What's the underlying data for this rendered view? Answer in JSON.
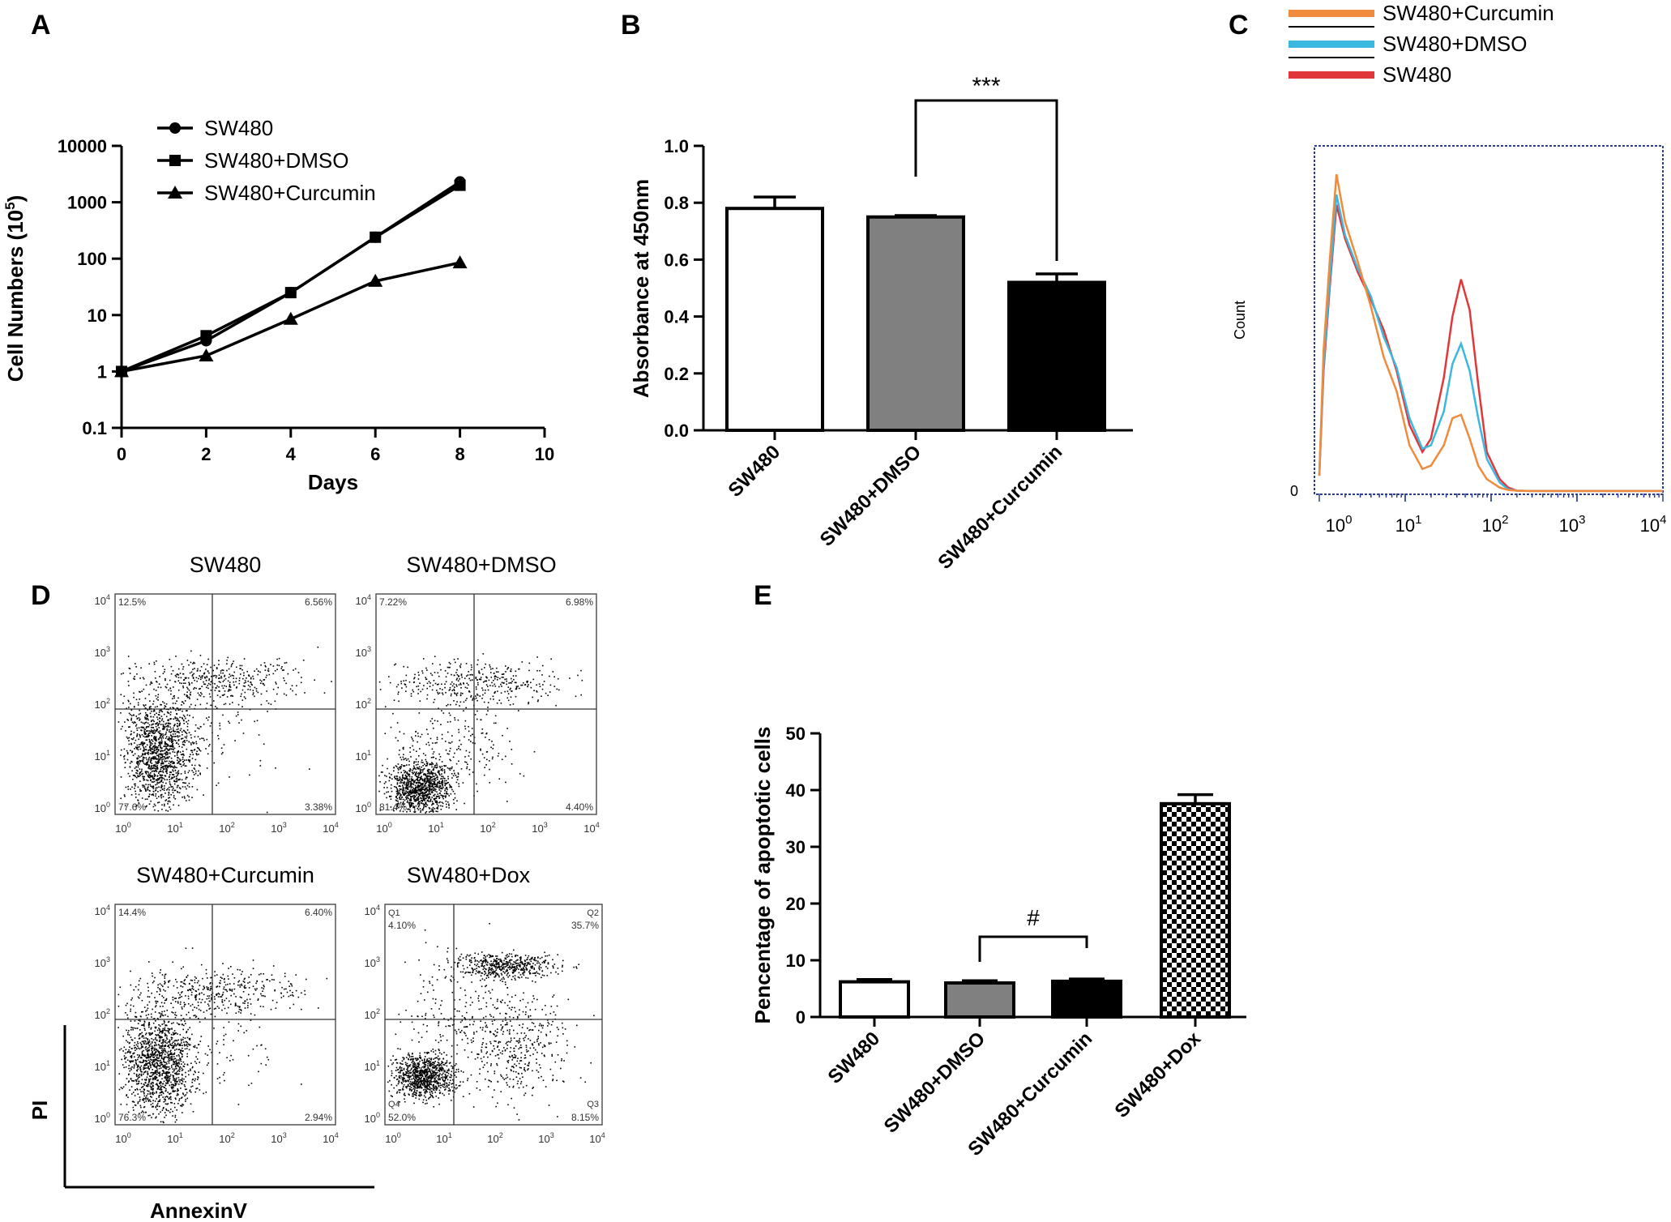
{
  "panels": {
    "A": "A",
    "B": "B",
    "C": "C",
    "D": "D",
    "E": "E"
  },
  "colors": {
    "orange": "#f08a3c",
    "blue": "#3bb8e0",
    "red": "#e0383a",
    "black": "#000000",
    "gray": "#808080",
    "white": "#ffffff"
  },
  "chart_data": [
    {
      "panel": "A",
      "type": "line",
      "yscale": "log",
      "xlabel": "Days",
      "ylabel_main": "Cell Numbers (10",
      "ylabel_sup": "5",
      "ylabel_end": ")",
      "xlim": [
        0,
        10
      ],
      "ylim": [
        0.1,
        10000
      ],
      "xticks": [
        "0",
        "2",
        "4",
        "6",
        "8",
        "10"
      ],
      "yticks": [
        "0.1",
        "1",
        "10",
        "100",
        "1000",
        "10000"
      ],
      "x": [
        0,
        2,
        4,
        6,
        8
      ],
      "series": [
        {
          "name": "SW480",
          "marker": "circle",
          "values": [
            1,
            3.5,
            25,
            240,
            2300
          ]
        },
        {
          "name": "SW480+DMSO",
          "marker": "square",
          "values": [
            1,
            4.3,
            25,
            240,
            2000
          ]
        },
        {
          "name": "SW480+Curcumin",
          "marker": "triangle",
          "values": [
            1,
            1.9,
            8.5,
            40,
            85
          ]
        }
      ]
    },
    {
      "panel": "B",
      "type": "bar",
      "ylabel": "Absorbance at 450nm",
      "ylim": [
        0,
        1.0
      ],
      "yticks": [
        "0.0",
        "0.2",
        "0.4",
        "0.6",
        "0.8",
        "1.0"
      ],
      "categories": [
        "SW480",
        "SW480+DMSO",
        "SW480+Curcumin"
      ],
      "values": [
        0.78,
        0.75,
        0.52
      ],
      "errors": [
        0.04,
        0.005,
        0.03
      ],
      "fills": [
        "#ffffff",
        "#808080",
        "#000000"
      ],
      "significance": {
        "label": "***",
        "between": [
          1,
          2
        ]
      }
    },
    {
      "panel": "C",
      "type": "line",
      "subtype": "histogram",
      "ylabel": "Count",
      "y0_label": "0",
      "xtick_base": "10",
      "xtick_exps": [
        "0",
        "1",
        "2",
        "3",
        "4"
      ],
      "legend": [
        {
          "name": "SW480+Curcumin",
          "color": "#f08a3c"
        },
        {
          "name": "SW480+DMSO",
          "color": "#3bb8e0"
        },
        {
          "name": "SW480",
          "color": "#e0383a"
        }
      ],
      "x": [
        0,
        0.05,
        0.12,
        0.2,
        0.3,
        0.45,
        0.6,
        0.75,
        0.9,
        1.05,
        1.2,
        1.3,
        1.45,
        1.55,
        1.65,
        1.75,
        1.85,
        1.95,
        2.1,
        2.2,
        2.3,
        2.45,
        2.55,
        2.7,
        3.0,
        3.5,
        4.0
      ],
      "series": [
        {
          "name": "SW480+Curcumin",
          "values": [
            5,
            42,
            68,
            94,
            80,
            68,
            55,
            40,
            30,
            14,
            7,
            8,
            14,
            22,
            23,
            16,
            8,
            4,
            1.5,
            0.8,
            0.6,
            0.5,
            0.5,
            0.5,
            0.5,
            0.5,
            0.5
          ]
        },
        {
          "name": "SW480+DMSO",
          "values": [
            5,
            38,
            62,
            88,
            76,
            66,
            58,
            46,
            37,
            22,
            13,
            14,
            24,
            38,
            44,
            36,
            22,
            10,
            3,
            1,
            0.6,
            0.5,
            0.5,
            0.5,
            0.5,
            0.5,
            0.5
          ]
        },
        {
          "name": "SW480",
          "values": [
            5,
            36,
            60,
            85,
            75,
            65,
            57,
            48,
            36,
            20,
            12,
            16,
            34,
            52,
            63,
            54,
            32,
            12,
            4,
            1.5,
            0.6,
            0.5,
            0.5,
            0.5,
            0.5,
            0.5,
            0.5
          ]
        }
      ]
    },
    {
      "panel": "D",
      "type": "scatter",
      "subtype": "flow cytometry quadrant plots",
      "xlabel": "AnnexinV",
      "ylabel": "PI",
      "tick_base": "10",
      "tick_exps": [
        "0",
        "1",
        "2",
        "3",
        "4"
      ],
      "plots": [
        {
          "title": "SW480",
          "q1": "12.5%",
          "q2": "6.56%",
          "q3": "3.38%",
          "q4": "77.6%"
        },
        {
          "title": "SW480+DMSO",
          "q1": "7.22%",
          "q2": "6.98%",
          "q3": "4.40%",
          "q4": "81.4%"
        },
        {
          "title": "SW480+Curcumin",
          "q1": "14.4%",
          "q2": "6.40%",
          "q3": "2.94%",
          "q4": "76.3%"
        },
        {
          "title": "SW480+Dox",
          "q1": "4.10%",
          "q2": "35.7%",
          "q3": "8.15%",
          "q4": "52.0%",
          "q1_name": "Q1",
          "q2_name": "Q2",
          "q3_name": "Q3",
          "q4_name": "Q4"
        }
      ]
    },
    {
      "panel": "E",
      "type": "bar",
      "ylabel": "Pencentage of apoptotic cells",
      "ylim": [
        0,
        50
      ],
      "yticks": [
        "0",
        "10",
        "20",
        "30",
        "40",
        "50"
      ],
      "categories": [
        "SW480",
        "SW480+DMSO",
        "SW480+Curcumin",
        "SW480+Dox"
      ],
      "values": [
        6.2,
        6.0,
        6.3,
        37.6
      ],
      "errors": [
        0.4,
        0.4,
        0.4,
        1.6
      ],
      "fills": [
        "#ffffff",
        "#808080",
        "#000000",
        "checker"
      ],
      "significance": {
        "label": "#",
        "between": [
          1,
          2
        ]
      }
    }
  ]
}
